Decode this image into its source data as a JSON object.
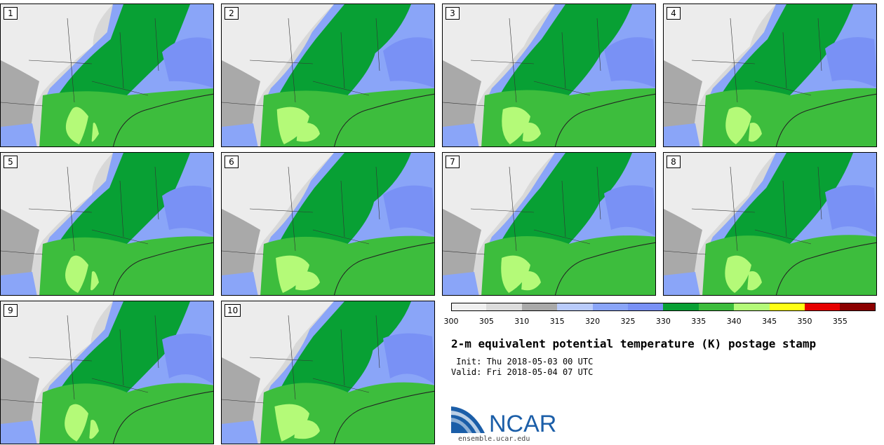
{
  "panels": [
    {
      "label": "1",
      "variant": 0
    },
    {
      "label": "2",
      "variant": 1
    },
    {
      "label": "3",
      "variant": 2
    },
    {
      "label": "4",
      "variant": 3
    },
    {
      "label": "5",
      "variant": 4
    },
    {
      "label": "6",
      "variant": 5
    },
    {
      "label": "7",
      "variant": 6
    },
    {
      "label": "8",
      "variant": 7
    },
    {
      "label": "9",
      "variant": 8
    },
    {
      "label": "10",
      "variant": 9
    }
  ],
  "colorbar": {
    "colors": [
      "#f0f0f0",
      "#dcdcdc",
      "#a9a9a9",
      "#b9cbfb",
      "#8aa5f8",
      "#7991f5",
      "#08a034",
      "#3dbd3d",
      "#b4fa78",
      "#ffff14",
      "#e60000",
      "#8b0000"
    ],
    "tick_labels": [
      "300",
      "305",
      "310",
      "315",
      "320",
      "325",
      "330",
      "335",
      "340",
      "345",
      "350",
      "355"
    ]
  },
  "title": "2-m equivalent potential temperature (K) postage stamp",
  "init": " Init: Thu 2018-05-03 00 UTC",
  "valid": "Valid: Fri 2018-05-04 07 UTC",
  "logo": {
    "text": "NCAR",
    "blue": "#1b5ea8"
  },
  "website": "ensemble.ucar.edu"
}
